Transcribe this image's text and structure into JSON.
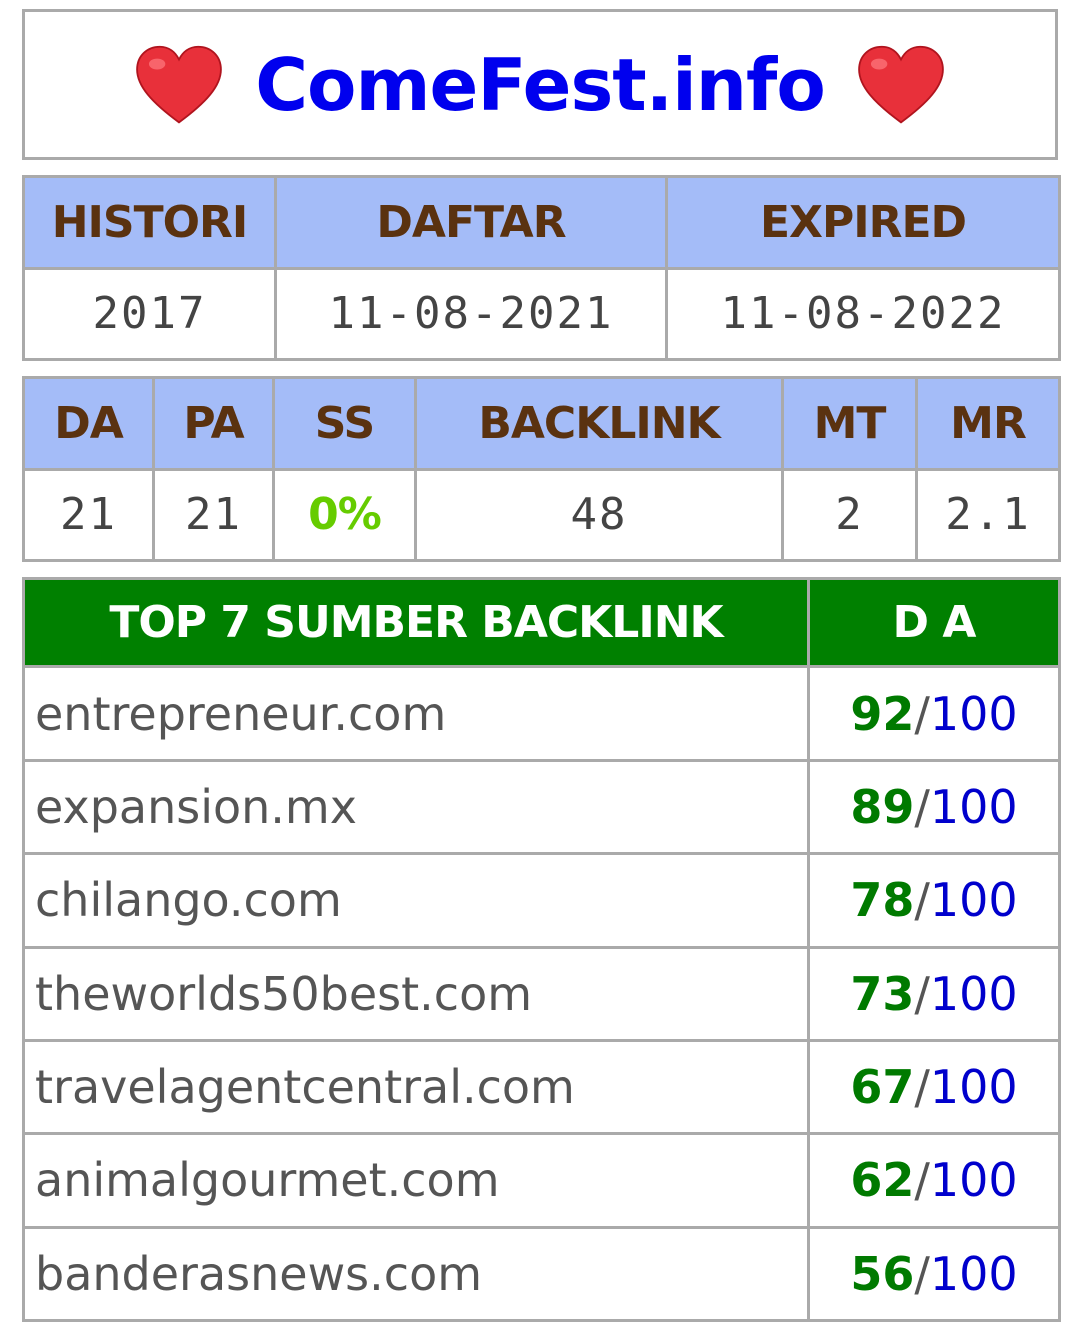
{
  "site": {
    "title": "ComeFest.info",
    "icons": [
      "heart-icon",
      "heart-icon"
    ],
    "heart_color": "#e8303a"
  },
  "registration": {
    "headers": [
      "HISTORI",
      "DAFTAR",
      "EXPIRED"
    ],
    "values": [
      "2017",
      "11-08-2021",
      "11-08-2022"
    ]
  },
  "metrics": {
    "headers": [
      "DA",
      "PA",
      "SS",
      "BACKLINK",
      "MT",
      "MR"
    ],
    "values": [
      "21",
      "21",
      "0%",
      "48",
      "2",
      "2.1"
    ]
  },
  "backlinks": {
    "header_source": "TOP 7 SUMBER BACKLINK",
    "header_da": "D A",
    "separator": "/",
    "rows": [
      {
        "domain": "entrepreneur.com",
        "da": "92",
        "max": "100"
      },
      {
        "domain": "expansion.mx",
        "da": "89",
        "max": "100"
      },
      {
        "domain": "chilango.com",
        "da": "78",
        "max": "100"
      },
      {
        "domain": "theworlds50best.com",
        "da": "73",
        "max": "100"
      },
      {
        "domain": "travelagentcentral.com",
        "da": "67",
        "max": "100"
      },
      {
        "domain": "animalgourmet.com",
        "da": "62",
        "max": "100"
      },
      {
        "domain": "banderasnews.com",
        "da": "56",
        "max": "100"
      }
    ]
  },
  "colors": {
    "header_blue": "#a4bcf8",
    "header_green": "#008000",
    "title_blue": "#0000ee",
    "ss_green": "#66cc00",
    "score_green": "#007a00",
    "score_blue": "#0000cc"
  }
}
